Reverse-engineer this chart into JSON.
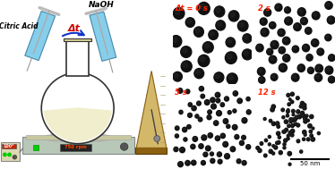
{
  "background": "#ffffff",
  "syringe_color": "#87ceeb",
  "syringe_edge": "#4488aa",
  "flask_fill": "#ffffff",
  "flask_edge": "#333333",
  "flask_liquid": "#f0eecc",
  "hotplate_body": "#b8c8b8",
  "hotplate_surface": "#c8c8a0",
  "metronome_body": "#d4b86a",
  "metronome_edge": "#8b6010",
  "metronome_base": "#8b6010",
  "ctrl_box_bg": "#ddd8b0",
  "ctrl_display_red": "#cc2200",
  "ctrl_display_green": "#00bb00",
  "hotplate_display": "#cc2200",
  "label_naoh": "NaOH",
  "label_citric": "Citric Acid",
  "label_dt": "Δt",
  "label_rpm": "750 rpm",
  "label_temp": "100°",
  "panel_labels": [
    "Δt = 0 s",
    "2 s",
    "5 s",
    "12 s"
  ],
  "scale_bar_label": "50 nm",
  "tem_bg": "#c5cdd4",
  "particle_color": "#111111",
  "label_color": "#ff2200",
  "arrow_color": "#1133cc",
  "needle_color": "#999999"
}
